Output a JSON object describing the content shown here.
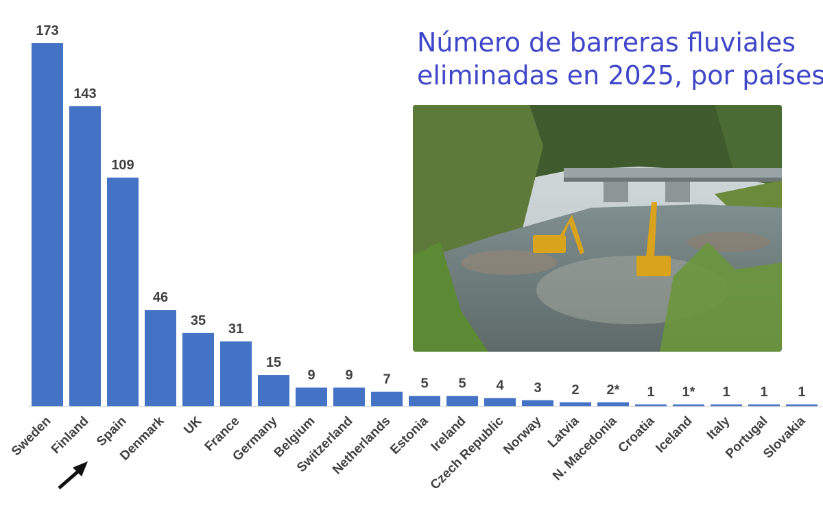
{
  "title_lines": [
    "Número de barreras fluviales",
    "eliminadas en 2025, por países"
  ],
  "colors": {
    "bar": "#4472c4",
    "title": "#3f47c8",
    "label": "#404040",
    "axis": "#d9d9d9",
    "arrow": "#111111"
  },
  "photo": {
    "description_icon": "river-excavator-photo"
  },
  "chart_data": {
    "type": "bar",
    "title": "Número de barreras fluviales eliminadas en 2025, por países",
    "categories": [
      "Sweden",
      "Finland",
      "Spain",
      "Denmark",
      "UK",
      "France",
      "Germany",
      "Belgium",
      "Switzerland",
      "Netherlands",
      "Estonia",
      "Ireland",
      "Czech Republic",
      "Norway",
      "Latvia",
      "N. Macedonia",
      "Croatia",
      "Iceland",
      "Italy",
      "Portugal",
      "Slovakia"
    ],
    "values": [
      173,
      143,
      109,
      46,
      35,
      31,
      15,
      9,
      9,
      7,
      5,
      5,
      4,
      3,
      2,
      2,
      1,
      1,
      1,
      1,
      1
    ],
    "data_labels": [
      "173",
      "143",
      "109",
      "46",
      "35",
      "31",
      "15",
      "9",
      "9",
      "7",
      "5",
      "5",
      "4",
      "3",
      "2",
      "2*",
      "1",
      "1*",
      "1",
      "1",
      "1"
    ],
    "xlabel": "",
    "ylabel": "",
    "ylim": [
      0,
      173
    ],
    "grid": false,
    "legend": "none",
    "highlight_arrow": "Spain"
  }
}
